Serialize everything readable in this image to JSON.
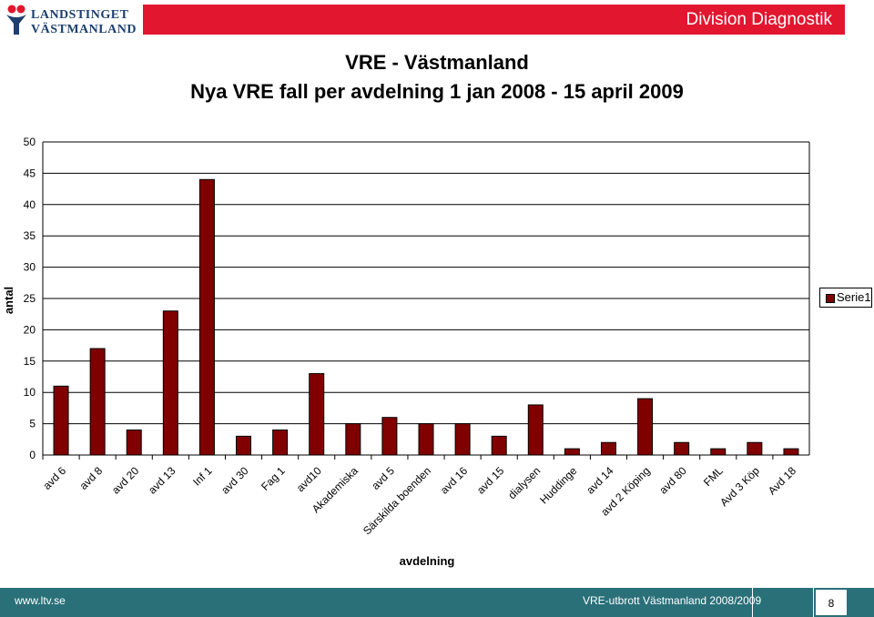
{
  "logo": {
    "line1": "LANDSTINGET",
    "line2": "VÄSTMANLAND"
  },
  "header": {
    "division": "Division Diagnostik"
  },
  "colors": {
    "header_red": "#e2162f",
    "bar": "#800000",
    "footer_teal": "#2a7079",
    "logo_blue": "#1c3f6e"
  },
  "chart_data": {
    "type": "bar",
    "title": "VRE - Västmanland",
    "subtitle": "Nya VRE fall per avdelning 1 jan 2008  -  15 april 2009",
    "xlabel": "avdelning",
    "ylabel": "antal",
    "ylim": [
      0,
      50
    ],
    "yticks": [
      0,
      5,
      10,
      15,
      20,
      25,
      30,
      35,
      40,
      45,
      50
    ],
    "grid": true,
    "legend_position": "right",
    "categories": [
      "avd 6",
      "avd 8",
      "avd 20",
      "avd 13",
      "Inf 1",
      "avd 30",
      "Fag 1",
      "avd10",
      "Akademiska",
      "avd 5",
      "Särskilda boenden",
      "avd 16",
      "avd 15",
      "dialysen",
      "Huddinge",
      "avd 14",
      "avd 2 Köping",
      "avd 80",
      "FML",
      "Avd 3 Köp",
      "Avd 18"
    ],
    "series": [
      {
        "name": "Serie1",
        "values": [
          11,
          17,
          4,
          23,
          44,
          3,
          4,
          13,
          5,
          6,
          5,
          5,
          3,
          8,
          1,
          2,
          9,
          2,
          1,
          2,
          1
        ]
      }
    ]
  },
  "footer": {
    "url": "www.ltv.se",
    "description": "VRE-utbrott Västmanland 2008/2009",
    "page": "8"
  }
}
